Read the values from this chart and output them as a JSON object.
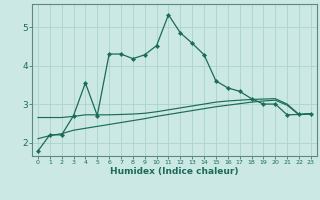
{
  "title": "",
  "xlabel": "Humidex (Indice chaleur)",
  "bg_color": "#cce8e4",
  "grid_color": "#aad4cc",
  "line_color": "#1a6b5a",
  "spine_color": "#5a8a82",
  "xlim": [
    -0.5,
    23.5
  ],
  "ylim": [
    1.65,
    5.6
  ],
  "yticks": [
    2,
    3,
    4,
    5
  ],
  "xticks": [
    0,
    1,
    2,
    3,
    4,
    5,
    6,
    7,
    8,
    9,
    10,
    11,
    12,
    13,
    14,
    15,
    16,
    17,
    18,
    19,
    20,
    21,
    22,
    23
  ],
  "line1_x": [
    0,
    1,
    2,
    3,
    4,
    5,
    6,
    7,
    8,
    9,
    10,
    11,
    12,
    13,
    14,
    15,
    16,
    17,
    18,
    19,
    20,
    21,
    22,
    23
  ],
  "line1_y": [
    1.78,
    2.2,
    2.2,
    2.7,
    3.55,
    2.7,
    4.3,
    4.3,
    4.18,
    4.28,
    4.52,
    5.32,
    4.85,
    4.58,
    4.28,
    3.6,
    3.42,
    3.33,
    3.14,
    3.0,
    3.0,
    2.72,
    2.73,
    2.75
  ],
  "line2_x": [
    0,
    1,
    2,
    3,
    4,
    5,
    6,
    7,
    8,
    9,
    10,
    11,
    12,
    13,
    14,
    15,
    16,
    17,
    18,
    19,
    20,
    21,
    22,
    23
  ],
  "line2_y": [
    2.65,
    2.65,
    2.65,
    2.68,
    2.72,
    2.72,
    2.72,
    2.73,
    2.74,
    2.76,
    2.8,
    2.85,
    2.9,
    2.95,
    3.0,
    3.05,
    3.08,
    3.1,
    3.12,
    3.13,
    3.14,
    3.0,
    2.73,
    2.75
  ],
  "line3_x": [
    0,
    1,
    2,
    3,
    4,
    5,
    6,
    7,
    8,
    9,
    10,
    11,
    12,
    13,
    14,
    15,
    16,
    17,
    18,
    19,
    20,
    21,
    22,
    23
  ],
  "line3_y": [
    2.1,
    2.18,
    2.23,
    2.32,
    2.37,
    2.42,
    2.47,
    2.52,
    2.57,
    2.62,
    2.68,
    2.73,
    2.78,
    2.83,
    2.88,
    2.93,
    2.97,
    3.01,
    3.05,
    3.08,
    3.1,
    2.97,
    2.72,
    2.75
  ]
}
